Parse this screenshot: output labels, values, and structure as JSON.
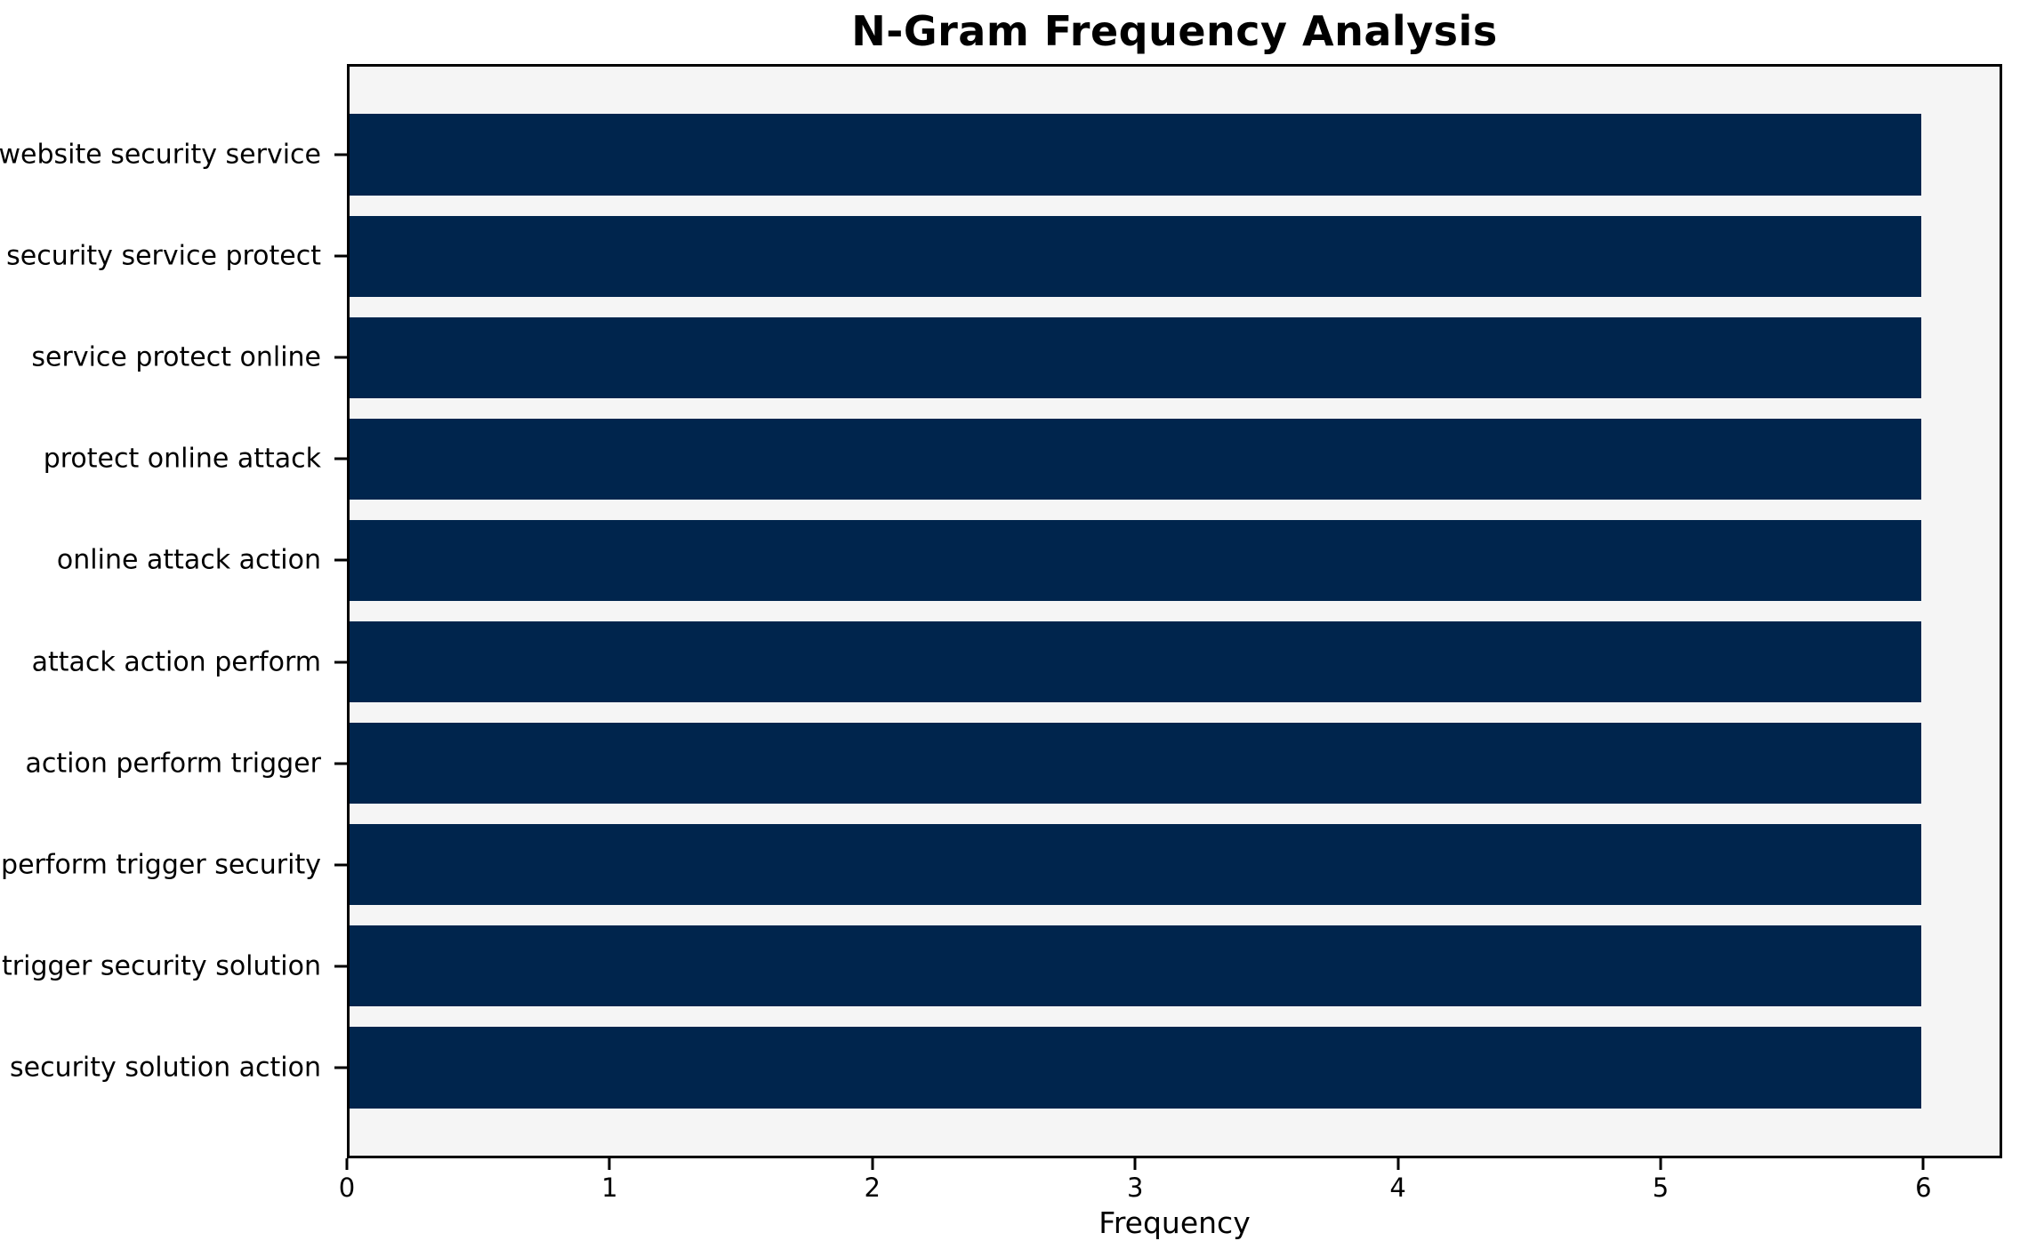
{
  "chart_data": {
    "type": "bar",
    "orientation": "horizontal",
    "title": "N-Gram Frequency Analysis",
    "xlabel": "Frequency",
    "ylabel": "",
    "categories": [
      "website security service",
      "security service protect",
      "service protect online",
      "protect online attack",
      "online attack action",
      "attack action perform",
      "action perform trigger",
      "perform trigger security",
      "trigger security solution",
      "security solution action"
    ],
    "values": [
      6,
      6,
      6,
      6,
      6,
      6,
      6,
      6,
      6,
      6
    ],
    "xticks": [
      0,
      1,
      2,
      3,
      4,
      5,
      6
    ],
    "xlim": [
      0,
      6.3
    ],
    "grid": false,
    "legend_position": "none",
    "bar_color": "#00254D",
    "plot_background": "#F5F5F5",
    "figure_background": "#FFFFFF",
    "axis_color": "#000000",
    "text_color": "#000000"
  }
}
